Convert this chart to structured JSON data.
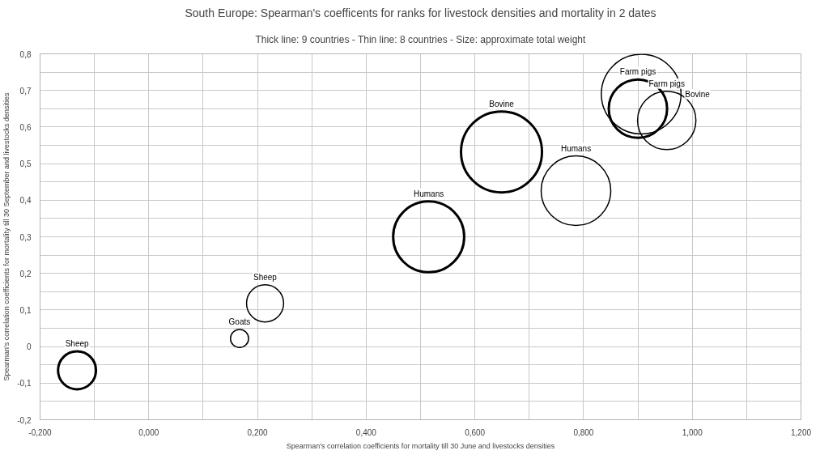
{
  "chart_data": {
    "type": "bubble",
    "title": "South Europe: Spearman's coefficents for ranks for livestock densities and mortality in 2 dates",
    "subtitle": "Thick line: 9 countries - Thin line: 8 countries - Size: approximate total weight",
    "xlabel": "Spearman's correlation coefficients for mortality till 30 June and livestocks densities",
    "ylabel": "Spearman's correlation coefficients for mortality till 30 September and livestocks densities",
    "series": [
      {
        "color": "#000000",
        "x": [
          -0.132,
          0.515,
          0.649,
          0.9
        ],
        "values": [
          -0.065,
          0.3,
          0.532,
          0.65
        ],
        "sizes": [
          0.22,
          0.77,
          1.0,
          0.52
        ],
        "value_labels": [
          "Sheep",
          "Humans",
          "Bovine",
          "Farm pigs"
        ]
      },
      {
        "color": "#000000",
        "x": [
          0.167,
          0.214,
          0.786,
          0.906,
          0.953
        ],
        "values": [
          0.022,
          0.118,
          0.426,
          0.69,
          0.618
        ],
        "sizes": [
          0.05,
          0.21,
          0.74,
          0.97,
          0.52
        ],
        "value_labels": [
          "Goats",
          "Sheep",
          "Humans",
          "Bovine",
          "Farm pigs"
        ]
      }
    ],
    "xlim": [
      -0.2,
      1.2
    ],
    "ylim": [
      -0.2,
      0.8
    ],
    "xticks": [
      {
        "value": -0.2,
        "label": "-0,200"
      },
      {
        "value": -0.1,
        "label": null
      },
      {
        "value": 0,
        "label": "0,000"
      },
      {
        "value": 0.1,
        "label": null
      },
      {
        "value": 0.2,
        "label": "0,200"
      },
      {
        "value": 0.3,
        "label": null
      },
      {
        "value": 0.4,
        "label": "0,400"
      },
      {
        "value": 0.5,
        "label": null
      },
      {
        "value": 0.6,
        "label": "0,600"
      },
      {
        "value": 0.7,
        "label": null
      },
      {
        "value": 0.8,
        "label": "0,800"
      },
      {
        "value": 0.9,
        "label": null
      },
      {
        "value": 1.0,
        "label": "1,000"
      },
      {
        "value": 1.1,
        "label": null
      },
      {
        "value": 1.2,
        "label": "1,200"
      }
    ],
    "yticks": [
      {
        "value": -0.2,
        "label": "-0,2"
      },
      {
        "value": -0.15,
        "label": null
      },
      {
        "value": -0.1,
        "label": "-0,1"
      },
      {
        "value": -0.05,
        "label": null
      },
      {
        "value": 0,
        "label": "0"
      },
      {
        "value": 0.05,
        "label": null
      },
      {
        "value": 0.1,
        "label": "0,1"
      },
      {
        "value": 0.15,
        "label": null
      },
      {
        "value": 0.2,
        "label": "0,2"
      },
      {
        "value": 0.25,
        "label": null
      },
      {
        "value": 0.3,
        "label": "0,3"
      },
      {
        "value": 0.35,
        "label": null
      },
      {
        "value": 0.4,
        "label": "0,4"
      },
      {
        "value": 0.45,
        "label": null
      },
      {
        "value": 0.5,
        "label": "0,5"
      },
      {
        "value": 0.55,
        "label": null
      },
      {
        "value": 0.6,
        "label": "0,6"
      },
      {
        "value": 0.65,
        "label": null
      },
      {
        "value": 0.7,
        "label": "0,7"
      },
      {
        "value": 0.75,
        "label": null
      },
      {
        "value": 0.8,
        "label": "0,8"
      }
    ],
    "grid": true
  }
}
